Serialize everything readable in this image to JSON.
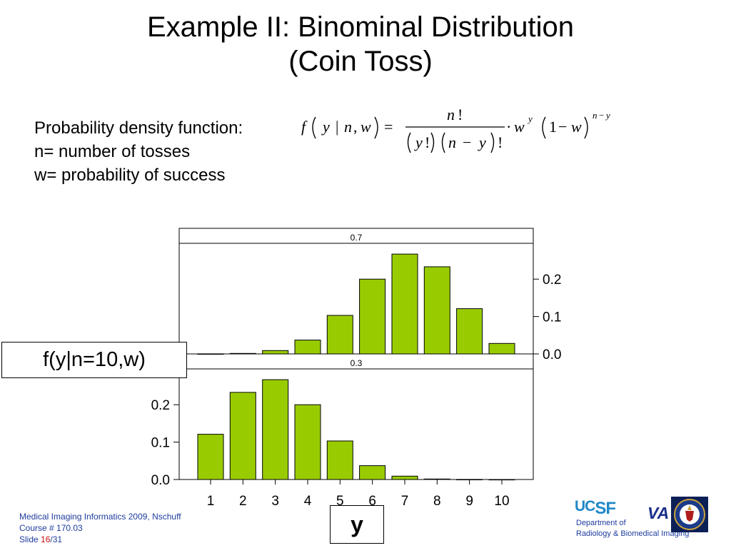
{
  "slide": {
    "title_line1": "Example II: Binominal Distribution",
    "title_line2": "(Coin Toss)",
    "desc_lines": [
      "Probability density function:",
      "n= number of tosses",
      "w= probability of success"
    ],
    "formula": {
      "f": "f",
      "y": "y",
      "bar": "|",
      "n": "n",
      "comma": ",",
      "w": "w",
      "eq": "=",
      "num_n": "n",
      "fact": "!",
      "den_y": "y",
      "den_fact1": "!",
      "den_n": "n",
      "minus": "−",
      "den_y2": "y",
      "den_fact2": "!",
      "dot": "·",
      "w2": "w",
      "sup_y": "y",
      "one": "1",
      "minus2": "−",
      "w3": "w",
      "sup_n": "n",
      "sup_minus": "−",
      "sup_y2": "y"
    },
    "f_label": "f(y|n=10,w)",
    "y_label": "y",
    "footer": {
      "line1": "Medical Imaging Informatics 2009, Nschuff",
      "line2": "Course # 170.03",
      "slide_prefix": "Slide ",
      "slide_num": "16",
      "slide_total": "/31"
    },
    "logos": {
      "ucsf_uc": "UC",
      "ucsf_sf": "SF",
      "va": "VA",
      "dept_line1": "Department of",
      "dept_line2": "Radiology & Biomedical Imaging"
    }
  },
  "colors": {
    "bar_fill": "#99cc00",
    "footer_text": "#1e3c9e",
    "accent_red": "#d01010"
  },
  "chart_data": [
    {
      "type": "bar",
      "panel": "0.7",
      "categories": [
        "1",
        "2",
        "3",
        "4",
        "5",
        "6",
        "7",
        "8",
        "9",
        "10"
      ],
      "values": [
        0.0001,
        0.0014,
        0.009,
        0.037,
        0.103,
        0.2,
        0.267,
        0.233,
        0.121,
        0.028
      ],
      "ylim": [
        0,
        0.28
      ],
      "yticks": [
        "0.0",
        "0.1",
        "0.2"
      ],
      "yaxis_side": "right"
    },
    {
      "type": "bar",
      "panel": "0.3",
      "categories": [
        "1",
        "2",
        "3",
        "4",
        "5",
        "6",
        "7",
        "8",
        "9",
        "10"
      ],
      "values": [
        0.121,
        0.233,
        0.267,
        0.2,
        0.103,
        0.037,
        0.009,
        0.0014,
        0.0001,
        0.0
      ],
      "ylim": [
        0,
        0.28
      ],
      "yticks": [
        "0.0",
        "0.1",
        "0.2"
      ],
      "yaxis_side": "left",
      "xticks": [
        "1",
        "2",
        "3",
        "4",
        "5",
        "6",
        "7",
        "8",
        "9",
        "10"
      ]
    }
  ]
}
